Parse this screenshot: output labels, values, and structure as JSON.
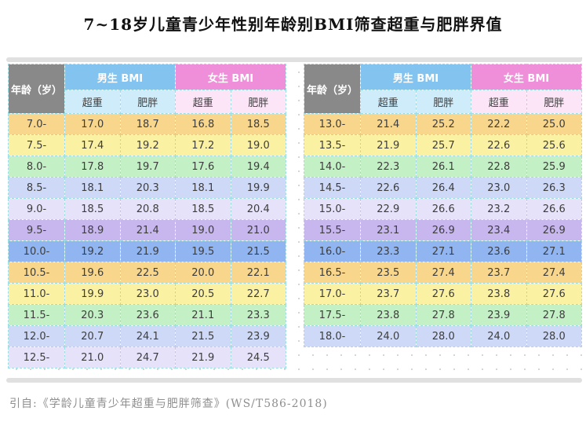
{
  "title": "7~18岁儿童青少年性别年龄别BMI筛查超重与肥胖界值",
  "source_note": "引自:《学龄儿童青少年超重与肥胖筛查》(WS/T586-2018)",
  "header_labels": {
    "age": "年龄（岁）",
    "boys": "男生 BMI",
    "girls": "女生 BMI",
    "overweight": "超重",
    "obese": "肥胖"
  },
  "chart_data": [
    {
      "type": "table",
      "name": "bmi-cutoffs-ages-7-to-12.5",
      "columns": [
        "年龄（岁）",
        "男生 BMI 超重",
        "男生 BMI 肥胖",
        "女生 BMI 超重",
        "女生 BMI 肥胖"
      ],
      "rows": [
        [
          "7.0-",
          "17.0",
          "18.7",
          "16.8",
          "18.5"
        ],
        [
          "7.5-",
          "17.4",
          "19.2",
          "17.2",
          "19.0"
        ],
        [
          "8.0-",
          "17.8",
          "19.7",
          "17.6",
          "19.4"
        ],
        [
          "8.5-",
          "18.1",
          "20.3",
          "18.1",
          "19.9"
        ],
        [
          "9.0-",
          "18.5",
          "20.8",
          "18.5",
          "20.4"
        ],
        [
          "9.5-",
          "18.9",
          "21.4",
          "19.0",
          "21.0"
        ],
        [
          "10.0-",
          "19.2",
          "21.9",
          "19.5",
          "21.5"
        ],
        [
          "10.5-",
          "19.6",
          "22.5",
          "20.0",
          "22.1"
        ],
        [
          "11.0-",
          "19.9",
          "23.0",
          "20.5",
          "22.7"
        ],
        [
          "11.5-",
          "20.3",
          "23.6",
          "21.1",
          "23.3"
        ],
        [
          "12.0-",
          "20.7",
          "24.1",
          "21.5",
          "23.9"
        ],
        [
          "12.5-",
          "21.0",
          "24.7",
          "21.9",
          "24.5"
        ]
      ]
    },
    {
      "type": "table",
      "name": "bmi-cutoffs-ages-13-to-18",
      "columns": [
        "年龄（岁）",
        "男生 BMI 超重",
        "男生 BMI 肥胖",
        "女生 BMI 超重",
        "女生 BMI 肥胖"
      ],
      "rows": [
        [
          "13.0-",
          "21.4",
          "25.2",
          "22.2",
          "25.0"
        ],
        [
          "13.5-",
          "21.9",
          "25.7",
          "22.6",
          "25.6"
        ],
        [
          "14.0-",
          "22.3",
          "26.1",
          "22.8",
          "25.9"
        ],
        [
          "14.5-",
          "22.6",
          "26.4",
          "23.0",
          "26.3"
        ],
        [
          "15.0-",
          "22.9",
          "26.6",
          "23.2",
          "26.6"
        ],
        [
          "15.5-",
          "23.1",
          "26.9",
          "23.4",
          "26.9"
        ],
        [
          "16.0-",
          "23.3",
          "27.1",
          "23.6",
          "27.1"
        ],
        [
          "16.5-",
          "23.5",
          "27.4",
          "23.7",
          "27.4"
        ],
        [
          "17.0-",
          "23.7",
          "27.6",
          "23.8",
          "27.6"
        ],
        [
          "17.5-",
          "23.8",
          "27.8",
          "23.9",
          "27.8"
        ],
        [
          "18.0-",
          "24.0",
          "28.0",
          "24.0",
          "28.0"
        ]
      ]
    }
  ],
  "colors": {
    "age_header_bg": "#898989",
    "boys_header_bg": "#82C3F0",
    "girls_header_bg": "#F08FD9",
    "boys_subheader_bg": "#CFECFA",
    "girls_subheader_bg": "#FBE5F7",
    "cell_border": "#9bdde2",
    "row_cycle": [
      "#F8D68C",
      "#FBF1A3",
      "#C4F0C5",
      "#CED9F7",
      "#E5E2FA",
      "#C8B6EE",
      "#90B5F1"
    ]
  }
}
